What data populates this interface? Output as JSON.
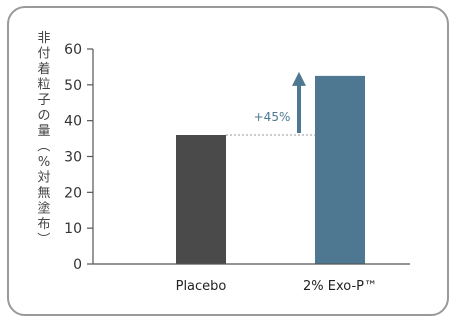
{
  "chart_data": {
    "type": "bar",
    "title": "",
    "ylabel": "非付着粒子の量（%対無塗布）",
    "xlabel": "",
    "categories": [
      "Placebo",
      "2% Exo-P™"
    ],
    "values": [
      36,
      52.5
    ],
    "colors": [
      "#4a4a4a",
      "#4e7891"
    ],
    "ylim": [
      0,
      60
    ],
    "yticks": [
      0,
      10,
      20,
      30,
      40,
      50,
      60
    ],
    "grid": false,
    "annotation": {
      "text": "+45%",
      "color": "#4e7891",
      "arrow": "up",
      "reference_value": 36
    }
  }
}
